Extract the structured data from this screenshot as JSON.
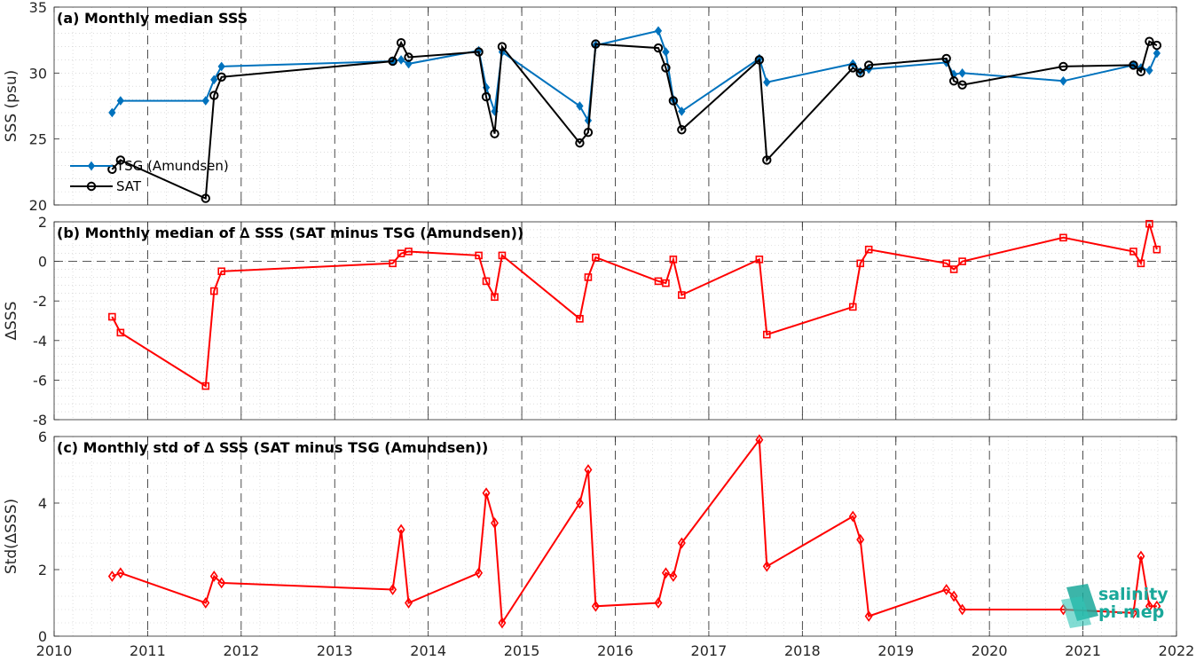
{
  "chart_data": [
    {
      "type": "line",
      "title": "(a) Monthly median SSS",
      "ylabel": "SSS (psu)",
      "xlim": [
        2010,
        2022
      ],
      "ylim": [
        20,
        35
      ],
      "yticks": [
        20,
        25,
        30,
        35
      ],
      "grid": true,
      "legend_position": "bottom-left",
      "series": [
        {
          "name": "TSG (Amundsen)",
          "color": "#0072BD",
          "marker": "diamond-filled",
          "x": [
            2010.62,
            2010.71,
            2011.62,
            2011.71,
            2011.79,
            2013.62,
            2013.71,
            2013.79,
            2014.54,
            2014.62,
            2014.71,
            2014.79,
            2015.62,
            2015.71,
            2015.79,
            2016.46,
            2016.54,
            2016.62,
            2016.71,
            2017.54,
            2017.62,
            2018.54,
            2018.62,
            2018.71,
            2019.54,
            2019.62,
            2019.71,
            2020.79,
            2021.54,
            2021.62,
            2021.71,
            2021.79
          ],
          "y": [
            27.0,
            27.9,
            27.9,
            29.5,
            30.5,
            30.9,
            31.0,
            30.7,
            31.7,
            28.9,
            27.1,
            31.6,
            27.5,
            26.4,
            32.1,
            33.2,
            31.6,
            28.0,
            27.1,
            31.1,
            29.3,
            30.7,
            30.1,
            30.3,
            30.8,
            29.9,
            30.0,
            29.4,
            30.6,
            30.4,
            30.2,
            31.5
          ]
        },
        {
          "name": "SAT",
          "color": "#000000",
          "marker": "circle",
          "x": [
            2010.62,
            2010.71,
            2011.62,
            2011.71,
            2011.79,
            2013.62,
            2013.71,
            2013.79,
            2014.54,
            2014.62,
            2014.71,
            2014.79,
            2015.62,
            2015.71,
            2015.79,
            2016.46,
            2016.54,
            2016.62,
            2016.71,
            2017.54,
            2017.62,
            2018.54,
            2018.62,
            2018.71,
            2019.54,
            2019.62,
            2019.71,
            2020.79,
            2021.54,
            2021.62,
            2021.71,
            2021.79
          ],
          "y": [
            22.7,
            23.4,
            20.5,
            28.3,
            29.7,
            30.9,
            32.3,
            31.2,
            31.6,
            28.2,
            25.4,
            32.0,
            24.7,
            25.5,
            32.2,
            31.9,
            30.4,
            27.9,
            25.7,
            31.0,
            23.4,
            30.4,
            30.0,
            30.6,
            31.1,
            29.4,
            29.1,
            30.5,
            30.6,
            30.1,
            32.4,
            32.1
          ]
        }
      ],
      "legend": [
        "TSG (Amundsen)",
        "SAT"
      ]
    },
    {
      "type": "line",
      "title": "(b) Monthly median of ∆ SSS (SAT minus TSG (Amundsen))",
      "ylabel": "∆SSS",
      "xlim": [
        2010,
        2022
      ],
      "ylim": [
        -8,
        2
      ],
      "yticks": [
        -8,
        -6,
        -4,
        -2,
        0,
        2
      ],
      "grid": true,
      "zero_line": "dashed",
      "series": [
        {
          "color": "#FF0000",
          "marker": "square",
          "x": [
            2010.62,
            2010.71,
            2011.62,
            2011.71,
            2011.79,
            2013.62,
            2013.71,
            2013.79,
            2014.54,
            2014.62,
            2014.71,
            2014.79,
            2015.62,
            2015.71,
            2015.79,
            2016.46,
            2016.54,
            2016.62,
            2016.71,
            2017.54,
            2017.62,
            2018.54,
            2018.62,
            2018.71,
            2019.54,
            2019.62,
            2019.71,
            2020.79,
            2021.54,
            2021.62,
            2021.71,
            2021.79
          ],
          "y": [
            -2.8,
            -3.6,
            -6.3,
            -1.5,
            -0.5,
            -0.1,
            0.4,
            0.5,
            0.3,
            -1.0,
            -1.8,
            0.3,
            -2.9,
            -0.8,
            0.2,
            -1.0,
            -1.1,
            0.1,
            -1.7,
            0.1,
            -3.7,
            -2.3,
            -0.1,
            0.6,
            -0.1,
            -0.4,
            0.0,
            1.2,
            0.5,
            -0.1,
            1.9,
            0.6
          ]
        }
      ]
    },
    {
      "type": "line",
      "title": "(c) Monthly std of ∆ SSS (SAT minus TSG (Amundsen))",
      "ylabel": "Std(∆SSS)",
      "xlim": [
        2010,
        2022
      ],
      "ylim": [
        0,
        6
      ],
      "yticks": [
        0,
        2,
        4,
        6
      ],
      "xticks": [
        "2010",
        "2011",
        "2012",
        "2013",
        "2014",
        "2015",
        "2016",
        "2017",
        "2018",
        "2019",
        "2020",
        "2021",
        "2022"
      ],
      "grid": true,
      "series": [
        {
          "color": "#FF0000",
          "marker": "diamond",
          "x": [
            2010.62,
            2010.71,
            2011.62,
            2011.71,
            2011.79,
            2013.62,
            2013.71,
            2013.79,
            2014.54,
            2014.62,
            2014.71,
            2014.79,
            2015.62,
            2015.71,
            2015.79,
            2016.46,
            2016.54,
            2016.62,
            2016.71,
            2017.54,
            2017.62,
            2018.54,
            2018.62,
            2018.71,
            2019.54,
            2019.62,
            2019.71,
            2020.79,
            2021.54,
            2021.62,
            2021.71,
            2021.79
          ],
          "y": [
            1.8,
            1.9,
            1.0,
            1.8,
            1.6,
            1.4,
            3.2,
            1.0,
            1.9,
            4.3,
            3.4,
            0.4,
            4.0,
            5.0,
            0.9,
            1.0,
            1.9,
            1.8,
            2.8,
            5.9,
            2.1,
            3.6,
            2.9,
            0.6,
            1.4,
            1.2,
            0.8,
            0.8,
            0.7,
            2.4,
            0.9,
            0.9
          ]
        }
      ]
    }
  ],
  "logo": {
    "line1": "salinity",
    "line2": "pi-mep",
    "color": "#1aa89a"
  }
}
